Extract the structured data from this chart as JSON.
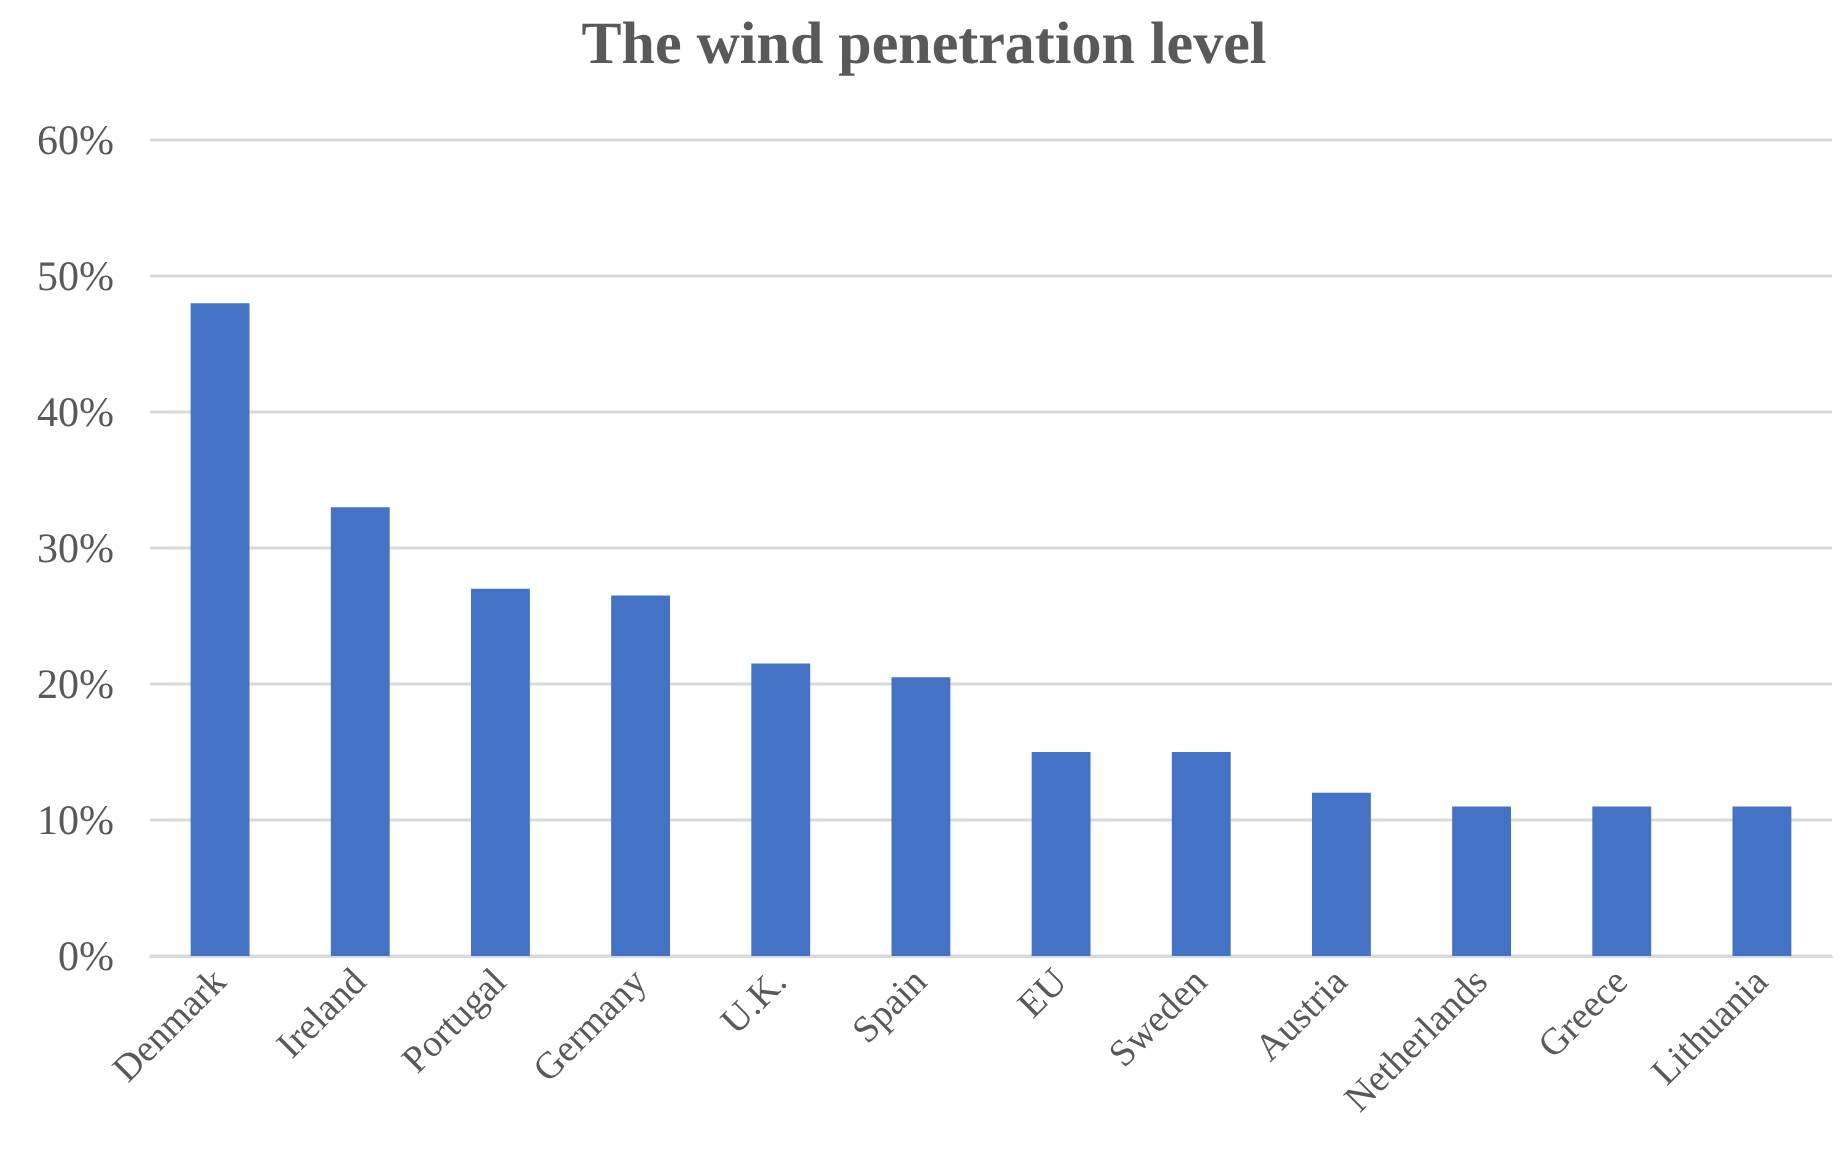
{
  "chart_data": {
    "type": "bar",
    "title": "The wind penetration level",
    "categories": [
      "Denmark",
      "Ireland",
      "Portugal",
      "Germany",
      "U.K.",
      "Spain",
      "EU",
      "Sweden",
      "Austria",
      "Netherlands",
      "Greece",
      "Lithuania"
    ],
    "values": [
      48,
      33,
      27,
      26.5,
      21.5,
      20.5,
      15,
      15,
      12,
      11,
      11,
      11
    ],
    "color": "#4472c4",
    "ylim": [
      0,
      60
    ],
    "yticks": [
      {
        "value": 0,
        "label": "0%"
      },
      {
        "value": 10,
        "label": "10%"
      },
      {
        "value": 20,
        "label": "20%"
      },
      {
        "value": 30,
        "label": "30%"
      },
      {
        "value": 40,
        "label": "40%"
      },
      {
        "value": 50,
        "label": "50%"
      },
      {
        "value": 60,
        "label": "60%"
      }
    ],
    "grid": true
  }
}
